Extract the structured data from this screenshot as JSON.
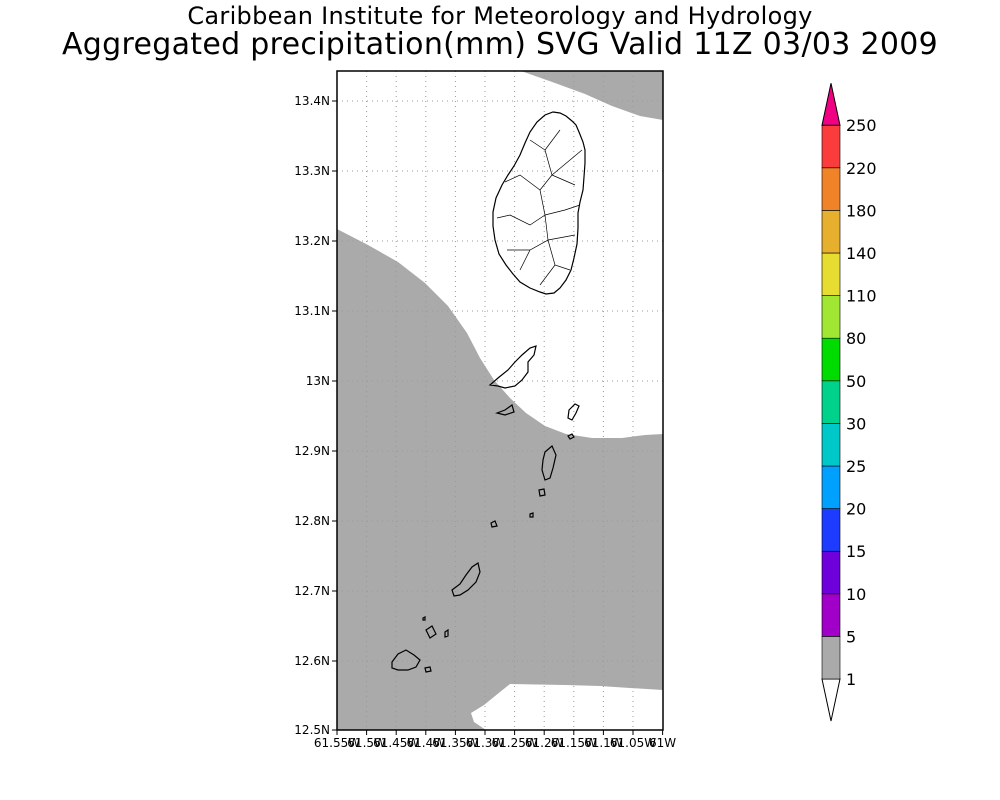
{
  "header": {
    "institution": "Caribbean Institute for Meteorology and Hydrology",
    "product": "Aggregated precipitation(mm) SVG Valid 11Z 03/03 2009"
  },
  "map": {
    "lat_ticks": [
      "13.4N",
      "13.3N",
      "13.2N",
      "13.1N",
      "13N",
      "12.9N",
      "12.8N",
      "12.7N",
      "12.6N",
      "12.5N"
    ],
    "lon_ticks": [
      "61.55W",
      "61.5W",
      "61.45W",
      "61.4W",
      "61.35W",
      "61.3W",
      "61.25W",
      "61.2W",
      "61.15W",
      "61.1W",
      "61.05W",
      "61W"
    ],
    "colors": {
      "rain_1_5": "#aaaaaa",
      "no_rain": "#ffffff",
      "coast": "#000000",
      "grid": "#999999"
    }
  },
  "colorbar": {
    "levels": [
      {
        "label": "1",
        "color": "#ffffff"
      },
      {
        "label": "5",
        "color": "#aaaaaa"
      },
      {
        "label": "10",
        "color": "#a000c8"
      },
      {
        "label": "15",
        "color": "#6e00dc"
      },
      {
        "label": "20",
        "color": "#1e3cff"
      },
      {
        "label": "25",
        "color": "#00a0ff"
      },
      {
        "label": "30",
        "color": "#00c8c8"
      },
      {
        "label": "50",
        "color": "#00d28c"
      },
      {
        "label": "80",
        "color": "#00dc00"
      },
      {
        "label": "110",
        "color": "#a0e632"
      },
      {
        "label": "140",
        "color": "#e6dc32"
      },
      {
        "label": "180",
        "color": "#e6af2d"
      },
      {
        "label": "220",
        "color": "#f08228"
      },
      {
        "label": "250",
        "color": "#fa3c3c"
      }
    ],
    "top_color": "#f00082"
  }
}
